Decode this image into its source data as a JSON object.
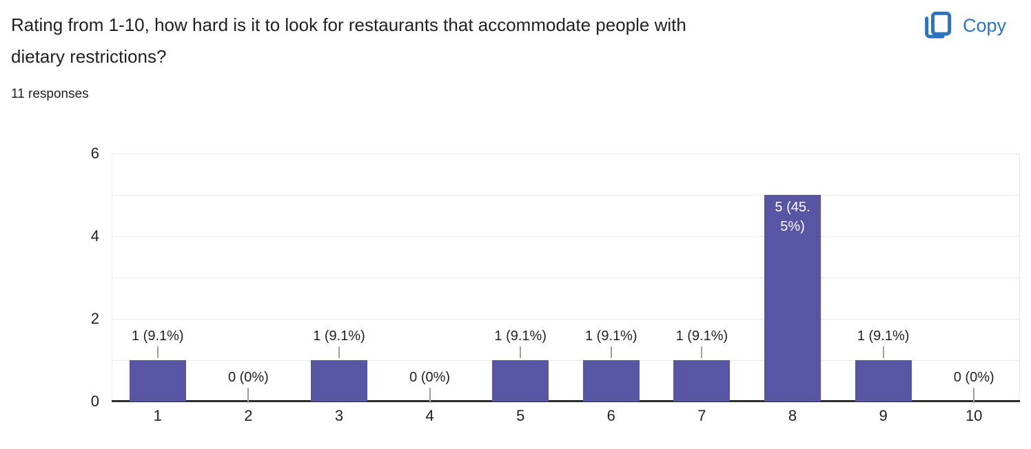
{
  "header": {
    "title": "Rating from 1-10, how hard is it to look for restaurants that accommodate people with dietary restrictions?",
    "title_lines": [
      "Rating from 1-10, how hard is it to look for restaurants that accommodate people with",
      "dietary restrictions?"
    ],
    "responses_count": "11 responses",
    "copy_label": "Copy",
    "copy_icon": "copy-icon",
    "accent_blue": "#2a73c4"
  },
  "chart_data": {
    "type": "bar",
    "title": "",
    "xlabel": "",
    "ylabel": "",
    "categories": [
      "1",
      "2",
      "3",
      "4",
      "5",
      "6",
      "7",
      "8",
      "9",
      "10"
    ],
    "values": [
      1,
      0,
      1,
      0,
      1,
      1,
      1,
      5,
      1,
      0
    ],
    "bar_labels": [
      "1 (9.1%)",
      "0 (0%)",
      "1 (9.1%)",
      "0 (0%)",
      "1 (9.1%)",
      "1 (9.1%)",
      "1 (9.1%)",
      "5 (45.5%)",
      "1 (9.1%)",
      "0 (0%)"
    ],
    "inside_label_index": 7,
    "inside_label_lines": [
      "5 (45.",
      "5%)"
    ],
    "ylim": [
      0,
      6
    ],
    "yticks": [
      0,
      2,
      4,
      6
    ],
    "gridline_step": 1,
    "grid": "on",
    "legend": "none",
    "colors": {
      "bar": "#5955a5",
      "gridline": "#e9e9e9",
      "axis_line": "#2b2b2b",
      "label_text": "#1f1f1f",
      "leader_line": "#9e9e9e"
    }
  }
}
